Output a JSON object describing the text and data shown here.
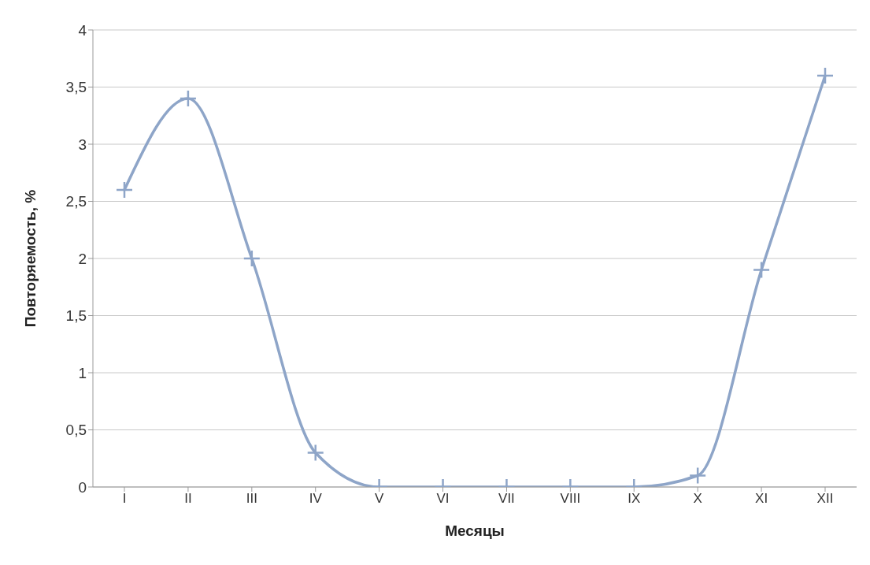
{
  "chart_data": {
    "type": "line",
    "xlabel": "Месяцы",
    "ylabel": "Повторяемость, %",
    "categories": [
      "I",
      "II",
      "III",
      "IV",
      "V",
      "VI",
      "VII",
      "VIII",
      "IX",
      "X",
      "XI",
      "XII"
    ],
    "series": [
      {
        "color": "#8ea5c8",
        "values": [
          2.6,
          3.4,
          2.0,
          0.3,
          0,
          0,
          0,
          0,
          0,
          0.1,
          1.9,
          3.6
        ]
      }
    ],
    "ylim": [
      0,
      4
    ],
    "yticks": [
      0,
      {
        "value": 0.5,
        "label": "0,5"
      },
      1,
      {
        "value": 1.5,
        "label": "1,5"
      },
      2,
      {
        "value": 2.5,
        "label": "2,5"
      },
      3,
      {
        "value": 3.5,
        "label": "3,5"
      },
      4
    ],
    "grid": "y",
    "legend": false,
    "marker": "cross",
    "line_style": "solid"
  }
}
